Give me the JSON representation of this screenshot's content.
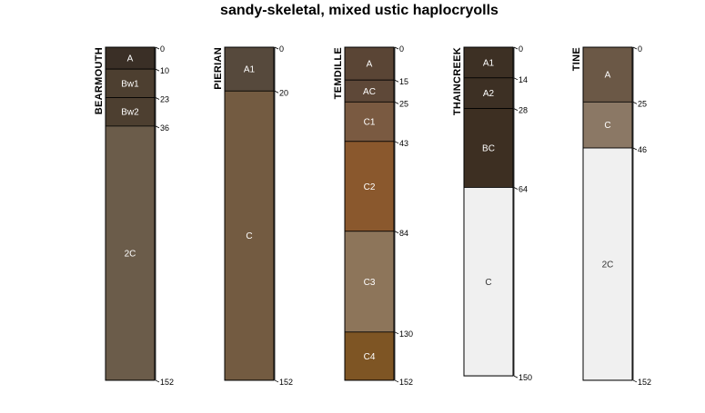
{
  "chart_data": {
    "type": "soil-profile",
    "title": "sandy-skeletal, mixed ustic haplocryolls",
    "depth_units": "cm",
    "ylim": [
      0,
      152
    ],
    "profiles": [
      {
        "name": "BEARMOUTH",
        "horizons": [
          {
            "name": "A",
            "top": 0,
            "bottom": 10,
            "color": "#3a2f26",
            "label_color": "#ffffff"
          },
          {
            "name": "Bw1",
            "top": 10,
            "bottom": 23,
            "color": "#4d3f30",
            "label_color": "#ffffff"
          },
          {
            "name": "Bw2",
            "top": 23,
            "bottom": 36,
            "color": "#4d3f30",
            "label_color": "#ffffff"
          },
          {
            "name": "2C",
            "top": 36,
            "bottom": 152,
            "color": "#6b5c4a",
            "label_color": "#ffffff"
          }
        ],
        "depth_ticks": [
          0,
          10,
          23,
          36,
          152
        ]
      },
      {
        "name": "PIERIAN",
        "horizons": [
          {
            "name": "A1",
            "top": 0,
            "bottom": 20,
            "color": "#56493c",
            "label_color": "#ffffff"
          },
          {
            "name": "C",
            "top": 20,
            "bottom": 152,
            "color": "#735b41",
            "label_color": "#ffffff"
          }
        ],
        "depth_ticks": [
          0,
          20,
          152
        ]
      },
      {
        "name": "TEMDILLE",
        "horizons": [
          {
            "name": "A",
            "top": 0,
            "bottom": 15,
            "color": "#5a4535",
            "label_color": "#ffffff"
          },
          {
            "name": "AC",
            "top": 15,
            "bottom": 25,
            "color": "#5e4838",
            "label_color": "#ffffff"
          },
          {
            "name": "C1",
            "top": 25,
            "bottom": 43,
            "color": "#7a5a41",
            "label_color": "#ffffff"
          },
          {
            "name": "C2",
            "top": 43,
            "bottom": 84,
            "color": "#8a582d",
            "label_color": "#ffffff"
          },
          {
            "name": "C3",
            "top": 84,
            "bottom": 130,
            "color": "#8d755a",
            "label_color": "#ffffff"
          },
          {
            "name": "C4",
            "top": 130,
            "bottom": 152,
            "color": "#7e5524",
            "label_color": "#ffffff"
          }
        ],
        "depth_ticks": [
          0,
          15,
          25,
          43,
          84,
          130,
          152
        ]
      },
      {
        "name": "THAINCREEK",
        "horizons": [
          {
            "name": "A1",
            "top": 0,
            "bottom": 14,
            "color": "#3d3024",
            "label_color": "#ffffff"
          },
          {
            "name": "A2",
            "top": 14,
            "bottom": 28,
            "color": "#3d3024",
            "label_color": "#ffffff"
          },
          {
            "name": "BC",
            "top": 28,
            "bottom": 64,
            "color": "#3d2f22",
            "label_color": "#ffffff"
          },
          {
            "name": "C",
            "top": 64,
            "bottom": 150,
            "color": "#f0f0f0",
            "label_color": "#333333"
          }
        ],
        "depth_ticks": [
          0,
          14,
          28,
          64,
          150
        ]
      },
      {
        "name": "TINE",
        "horizons": [
          {
            "name": "A",
            "top": 0,
            "bottom": 25,
            "color": "#6b5846",
            "label_color": "#ffffff"
          },
          {
            "name": "C",
            "top": 25,
            "bottom": 46,
            "color": "#8b7865",
            "label_color": "#ffffff"
          },
          {
            "name": "2C",
            "top": 46,
            "bottom": 152,
            "color": "#f0f0f0",
            "label_color": "#333333"
          }
        ],
        "depth_ticks": [
          0,
          25,
          46,
          152
        ]
      }
    ]
  }
}
